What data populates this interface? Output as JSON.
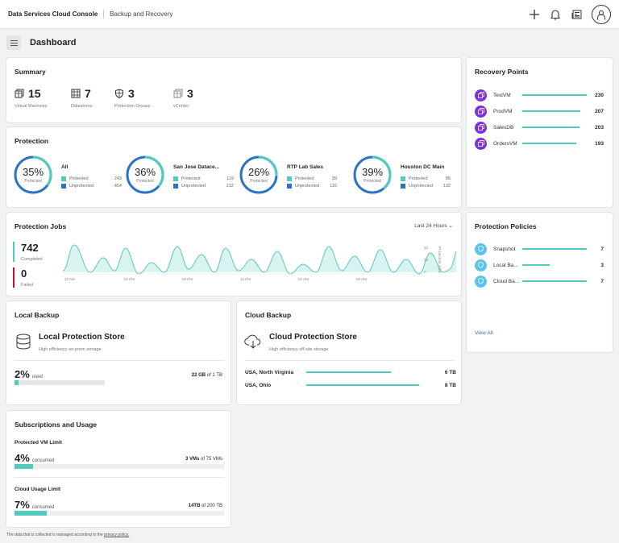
{
  "header": {
    "brand": "Data Services Cloud Console",
    "app": "Backup and Recovery"
  },
  "icons": {
    "add": "plus-icon",
    "notifications": "bell-icon",
    "news": "newspaper-icon",
    "user": "user-avatar-icon",
    "menu": "hamburger-menu-icon"
  },
  "page": {
    "title": "Dashboard"
  },
  "summary": {
    "title": "Summary",
    "stats": [
      {
        "value": "15",
        "label": "Virtual Machines",
        "icon": "vm-icon"
      },
      {
        "value": "7",
        "label": "Datastores",
        "icon": "datastore-icon"
      },
      {
        "value": "3",
        "label": "Protection Groups",
        "icon": "shield-icon"
      },
      {
        "value": "3",
        "label": "vCenter",
        "icon": "vcenter-icon"
      }
    ]
  },
  "protection": {
    "title": "Protection",
    "sub_label": "Protected",
    "protected_label": "Protected",
    "unprotected_label": "Unprotected",
    "locations": [
      {
        "name": "All",
        "pct": "35%",
        "fraction": 0.35,
        "protected": "243",
        "unprotected": "454"
      },
      {
        "name": "San Jose Datace...",
        "pct": "36%",
        "fraction": 0.36,
        "protected": "119",
        "unprotected": "212"
      },
      {
        "name": "RTP Lab Sales",
        "pct": "26%",
        "fraction": 0.26,
        "protected": "39",
        "unprotected": "110"
      },
      {
        "name": "Houston DC Main",
        "pct": "39%",
        "fraction": 0.39,
        "protected": "85",
        "unprotected": "132"
      }
    ]
  },
  "recovery_points": {
    "title": "Recovery Points",
    "items": [
      {
        "label": "TestVM",
        "value": "230",
        "v": 230
      },
      {
        "label": "ProdVM",
        "value": "207",
        "v": 207
      },
      {
        "label": "SalesDB",
        "value": "203",
        "v": 203
      },
      {
        "label": "OrdersVM",
        "value": "193",
        "v": 193
      }
    ]
  },
  "jobs": {
    "title": "Protection Jobs",
    "range": "Last 24 Hours",
    "completed": {
      "value": "742",
      "label": "Completed"
    },
    "failed": {
      "value": "0",
      "label": "Failed"
    },
    "chart": {
      "x_ticks": [
        "10 AM",
        "02 PM",
        "06 PM",
        "10 PM",
        "02 AM",
        "06 AM"
      ],
      "y_ticks": [
        "32",
        "16",
        "0"
      ],
      "y_label": "Protection Jobs"
    }
  },
  "policies": {
    "title": "Protection Policies",
    "items": [
      {
        "label": "Snapshot",
        "value": "7",
        "v": 7
      },
      {
        "label": "Local Ba...",
        "value": "3",
        "v": 3
      },
      {
        "label": "Cloud Ba...",
        "value": "7",
        "v": 7
      }
    ],
    "view_all": "View All"
  },
  "local_backup": {
    "title": "Local Backup",
    "store_title": "Local Protection Store",
    "store_sub": "High efficiency on-prem storage",
    "pct": "2%",
    "used_label": "used",
    "fill": 0.02,
    "used_value": "22 GB",
    "of_label": "of 1 TB"
  },
  "cloud_backup": {
    "title": "Cloud Backup",
    "store_title": "Cloud Protection Store",
    "store_sub": "High efficiency off-site storage",
    "regions": [
      {
        "label": "USA, North Virginia",
        "value": "6 TB",
        "v": 6
      },
      {
        "label": "USA, Ohio",
        "value": "8 TB",
        "v": 8
      }
    ]
  },
  "subscriptions": {
    "title": "Subscriptions and Usage",
    "vm_limit": {
      "title": "Protected VM Limit",
      "pct": "4%",
      "consumed_label": "consumed",
      "fill": 0.04,
      "value": "3 VMs",
      "of_label": "of 75 VMs"
    },
    "cloud_limit": {
      "title": "Cloud Usage Limit",
      "pct": "7%",
      "consumed_label": "consumed",
      "fill": 0.07,
      "value": "14TB",
      "of_label": "of 200 TB"
    }
  },
  "footer": {
    "text": "The data that is collected is managed according to the",
    "link": "privacy policy."
  },
  "colors": {
    "teal": "#56c9bf",
    "blue": "#2b73c4",
    "purple": "#7b32d6",
    "lightblue": "#5bc3ec",
    "red": "#c8102e"
  }
}
